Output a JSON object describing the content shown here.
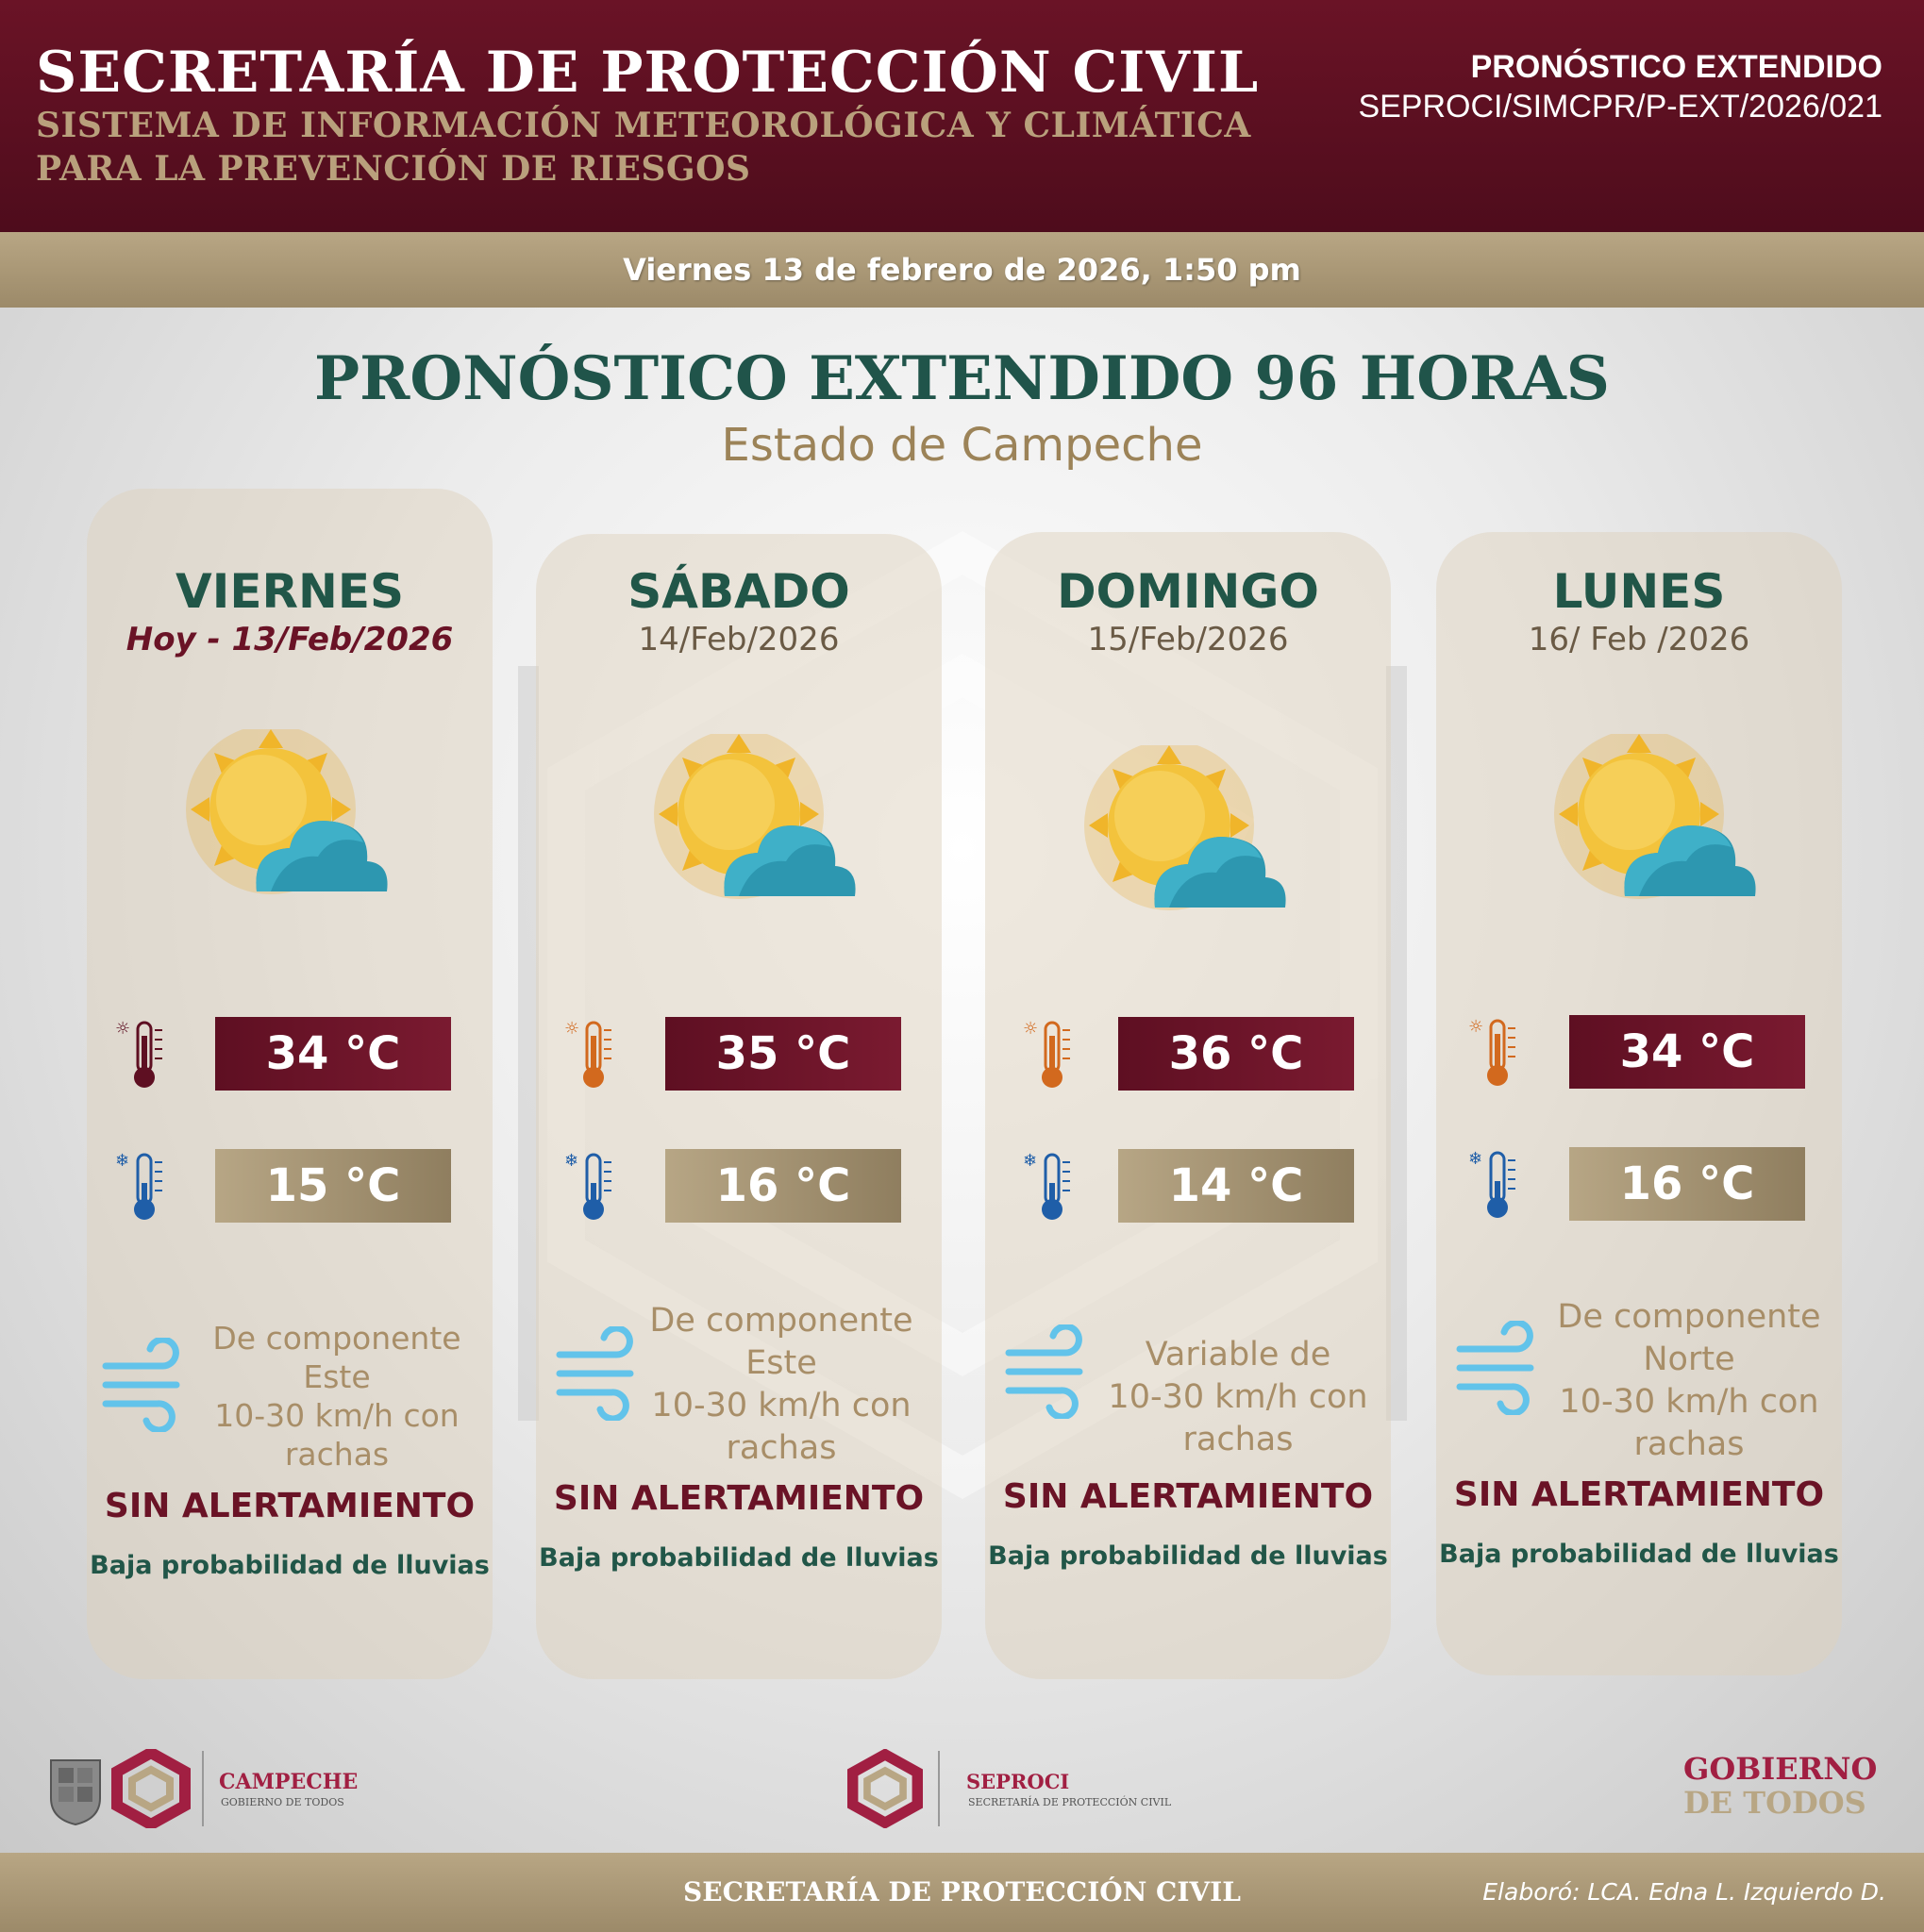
{
  "header": {
    "title": "SECRETARÍA DE PROTECCIÓN CIVIL",
    "subtitle_line1": "SISTEMA DE INFORMACIÓN METEOROLÓGICA Y CLIMÁTICA",
    "subtitle_line2": "PARA LA PREVENCIÓN DE RIESGOS",
    "doc_type": "PRONÓSTICO EXTENDIDO",
    "doc_code": "SEPROCI/SIMCPR/P-EXT/2026/021"
  },
  "issued": "Viernes 13 de febrero de 2026, 1:50 pm",
  "main": {
    "title": "PRONÓSTICO EXTENDIDO 96 HORAS",
    "subtitle": "Estado de Campeche"
  },
  "days": [
    {
      "name": "VIERNES",
      "date": "Hoy - 13/Feb/2026",
      "condition_icon": "sun-cloud-icon",
      "tmax": "34 °C",
      "tmin": "15 °C",
      "wind": [
        "De componente",
        "Este",
        "10-30 km/h con",
        "rachas"
      ],
      "alert": "SIN ALERTAMIENTO",
      "rain": "Baja probabilidad de lluvias"
    },
    {
      "name": "SÁBADO",
      "date": "14/Feb/2026",
      "condition_icon": "sun-cloud-icon",
      "tmax": "35 °C",
      "tmin": "16 °C",
      "wind": [
        "De componente",
        "Este",
        "10-30 km/h con",
        "rachas"
      ],
      "alert": "SIN ALERTAMIENTO",
      "rain": "Baja probabilidad de lluvias"
    },
    {
      "name": "DOMINGO",
      "date": "15/Feb/2026",
      "condition_icon": "sun-cloud-icon",
      "tmax": "36 °C",
      "tmin": "14 °C",
      "wind": [
        "Variable de",
        "10-30 km/h con",
        "rachas"
      ],
      "alert": "SIN ALERTAMIENTO",
      "rain": "Baja probabilidad de lluvias"
    },
    {
      "name": "LUNES",
      "date": "16/ Feb /2026",
      "condition_icon": "sun-cloud-icon",
      "tmax": "34 °C",
      "tmin": "16 °C",
      "wind": [
        "De componente",
        "Norte",
        "10-30 km/h con",
        "rachas"
      ],
      "alert": "SIN ALERTAMIENTO",
      "rain": "Baja probabilidad de lluvias"
    }
  ],
  "logos": {
    "campeche_name": "CAMPECHE",
    "campeche_tag": "GOBIERNO DE TODOS",
    "seproci_name": "SEPROCI",
    "seproci_tag": "SECRETARÍA DE PROTECCIÓN CIVIL",
    "gobierno_line1": "GOBIERNO",
    "gobierno_line2": "DE TODOS"
  },
  "footer": {
    "title": "SECRETARÍA DE PROTECCIÓN CIVIL",
    "author": "Elaboró: LCA. Edna L. Izquierdo D."
  },
  "colors": {
    "maroon": "#6a1326",
    "gold": "#b8a684",
    "green": "#215648",
    "sun": "#f2bf31",
    "cloud": "#2d9bb3",
    "wind": "#62c3ea"
  }
}
